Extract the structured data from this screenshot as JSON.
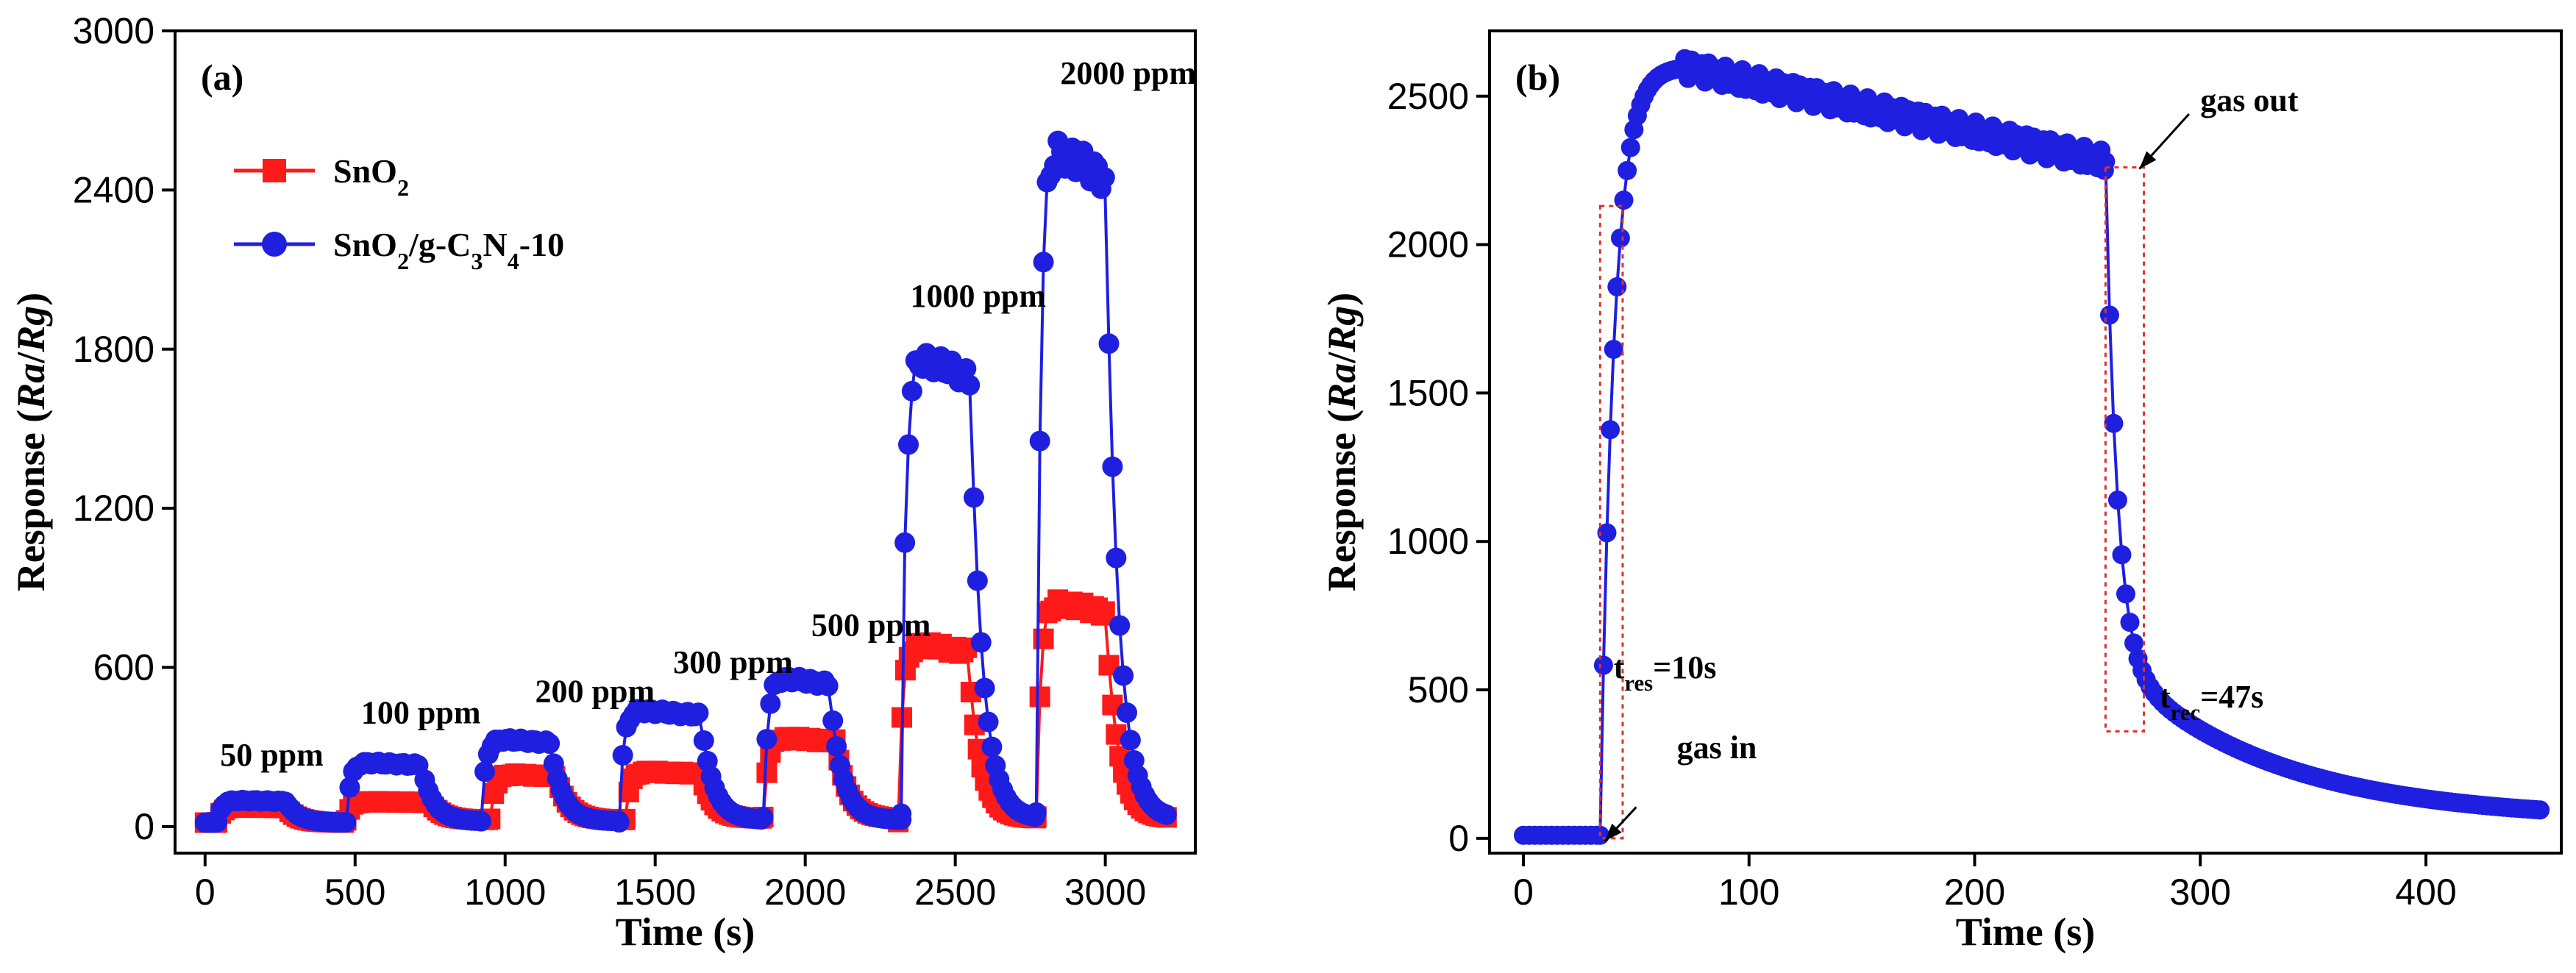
{
  "chart_data": [
    {
      "type": "line",
      "panel_label": "(a)",
      "xlabel": "Time (s)",
      "ylabel_parts": [
        "Response (",
        "Ra",
        "/",
        "Rg",
        ")"
      ],
      "xlim": [
        -100,
        3300
      ],
      "ylim": [
        -100,
        3000
      ],
      "xticks": [
        0,
        500,
        1000,
        1500,
        2000,
        2500,
        3000
      ],
      "yticks": [
        0,
        600,
        1200,
        1800,
        2400,
        3000
      ],
      "legend_position": "top-left",
      "legend": [
        {
          "name": "SnO2",
          "parts": [
            [
              "SnO",
              "normal"
            ],
            [
              "2",
              "sub"
            ]
          ]
        },
        {
          "name": "SnO2/g-C3N4-10",
          "parts": [
            [
              "SnO",
              "normal"
            ],
            [
              "2",
              "sub"
            ],
            [
              "/g-C",
              "normal"
            ],
            [
              "3",
              "sub"
            ],
            [
              "N",
              "normal"
            ],
            [
              "4",
              "sub"
            ],
            [
              "-10",
              "normal"
            ]
          ]
        }
      ],
      "series": [
        {
          "name": "SnO2",
          "color": "#ff1a1a",
          "marker": "square",
          "pulses": [
            {
              "on": 40,
              "off": 270,
              "end": 470,
              "peak": 75,
              "base": 15
            },
            {
              "on": 470,
              "off": 750,
              "end": 950,
              "peak": 95,
              "base": 25
            },
            {
              "on": 950,
              "off": 1170,
              "end": 1400,
              "peak": 200,
              "base": 25
            },
            {
              "on": 1400,
              "off": 1650,
              "end": 1860,
              "peak": 210,
              "base": 30
            },
            {
              "on": 1860,
              "off": 2100,
              "end": 2310,
              "peak": 340,
              "base": 30
            },
            {
              "on": 2310,
              "off": 2540,
              "end": 2770,
              "peak": 700,
              "base": 30
            },
            {
              "on": 2770,
              "off": 3000,
              "end": 3210,
              "peak": 860,
              "base": 30
            }
          ]
        },
        {
          "name": "SnO2/g-C3N4-10",
          "color": "#1f1fe0",
          "marker": "circle",
          "pulses": [
            {
              "on": 40,
              "off": 270,
              "end": 470,
              "peak": 100,
              "base": 15
            },
            {
              "on": 470,
              "off": 720,
              "end": 920,
              "peak": 245,
              "base": 20
            },
            {
              "on": 920,
              "off": 1150,
              "end": 1380,
              "peak": 335,
              "base": 20
            },
            {
              "on": 1380,
              "off": 1650,
              "end": 1860,
              "peak": 445,
              "base": 25
            },
            {
              "on": 1860,
              "off": 2080,
              "end": 2320,
              "peak": 570,
              "base": 25
            },
            {
              "on": 2320,
              "off": 2550,
              "end": 2770,
              "peak": 1800,
              "base": 30
            },
            {
              "on": 2770,
              "off": 3000,
              "end": 3210,
              "peak": 2600,
              "base": 30
            }
          ]
        }
      ],
      "annotations": [
        {
          "text": "50 ppm",
          "x": 50,
          "y": 230
        },
        {
          "text": "100 ppm",
          "x": 520,
          "y": 390
        },
        {
          "text": "200 ppm",
          "x": 1100,
          "y": 470
        },
        {
          "text": "300 ppm",
          "x": 1560,
          "y": 580
        },
        {
          "text": "500 ppm",
          "x": 2020,
          "y": 720
        },
        {
          "text": "1000 ppm",
          "x": 2350,
          "y": 1960
        },
        {
          "text": "2000 ppm",
          "x": 2850,
          "y": 2800
        }
      ]
    },
    {
      "type": "line",
      "panel_label": "(b)",
      "xlabel": "Time (s)",
      "ylabel_parts": [
        "Response (",
        "Ra",
        "/",
        "Rg",
        ")"
      ],
      "xlim": [
        -15,
        460
      ],
      "ylim": [
        -50,
        2720
      ],
      "xticks": [
        0,
        100,
        200,
        300,
        400
      ],
      "yticks": [
        0,
        500,
        1000,
        1500,
        2000,
        2500
      ],
      "series": [
        {
          "name": "SnO2/g-C3N4-10 (2000 ppm)",
          "color": "#1f1fe0",
          "marker": "circle",
          "gas_in_time": 34,
          "rise_end_time": 70,
          "peak": 2600,
          "value_before_gas_out": 2280,
          "gas_out_time": 258,
          "end_time": 452,
          "end_value": 60
        }
      ],
      "annotations": [
        {
          "text_parts": [
            [
              "t",
              "normal"
            ],
            [
              "res",
              "sub"
            ],
            [
              "=10s",
              "normal"
            ]
          ],
          "x": 40,
          "y": 540
        },
        {
          "text_parts": [
            [
              "t",
              "normal"
            ],
            [
              "rec",
              "sub"
            ],
            [
              "=47s",
              "normal"
            ]
          ],
          "x": 282,
          "y": 440
        },
        {
          "text_parts": [
            [
              "gas in",
              "normal"
            ]
          ],
          "x": 68,
          "y": 270
        },
        {
          "text_parts": [
            [
              "gas out",
              "normal"
            ]
          ],
          "x": 300,
          "y": 2450
        }
      ],
      "boxes": [
        {
          "x0": 34,
          "x1": 44,
          "y0": 0,
          "y1": 2130
        },
        {
          "x0": 258,
          "x1": 275,
          "y0": 360,
          "y1": 2260
        }
      ],
      "arrows": [
        {
          "from": [
            50,
            105
          ],
          "to": [
            36,
            -10
          ]
        },
        {
          "from": [
            295,
            2440
          ],
          "to": [
            273,
            2255
          ]
        }
      ]
    }
  ]
}
